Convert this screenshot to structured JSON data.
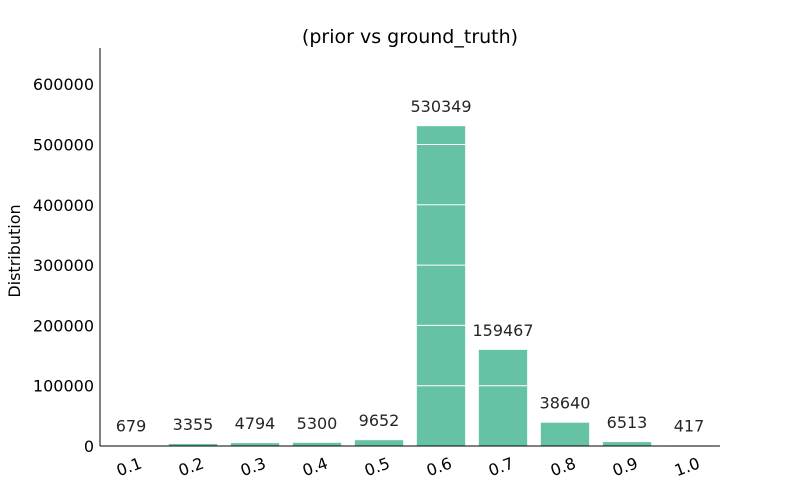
{
  "chart_data": {
    "type": "bar",
    "title": "(prior vs ground_truth)",
    "xlabel": "",
    "ylabel": "Distribution",
    "categories": [
      "0.1",
      "0.2",
      "0.3",
      "0.4",
      "0.5",
      "0.6",
      "0.7",
      "0.8",
      "0.9",
      "1.0"
    ],
    "values": [
      679,
      3355,
      4794,
      5300,
      9652,
      530349,
      159467,
      38640,
      6513,
      417
    ],
    "data_labels": [
      "679",
      "3355",
      "4794",
      "5300",
      "9652",
      "530349",
      "159467",
      "38640",
      "6513",
      "417"
    ],
    "ylim": [
      0,
      660000
    ],
    "yticks": [
      0,
      100000,
      200000,
      300000,
      400000,
      500000,
      600000
    ],
    "ytick_labels": [
      "0",
      "100000",
      "200000",
      "300000",
      "400000",
      "500000",
      "600000"
    ],
    "grid": "horizontal white lines over bars",
    "bar_color": "#66c2a5",
    "grid_color": "#ffffff",
    "text_color": "#262626"
  }
}
